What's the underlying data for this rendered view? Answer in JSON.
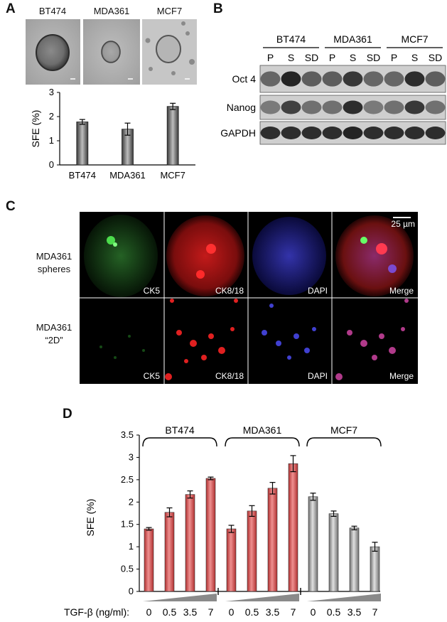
{
  "panel_a": {
    "label": "A",
    "images": [
      {
        "name": "BT474"
      },
      {
        "name": "MDA361"
      },
      {
        "name": "MCF7"
      }
    ],
    "chart_data": {
      "type": "bar",
      "categories": [
        "BT474",
        "MDA361",
        "MCF7"
      ],
      "values": [
        1.78,
        1.48,
        2.42
      ],
      "errors": [
        0.1,
        0.25,
        0.13
      ],
      "ylabel": "SFE (%)",
      "ylim": [
        0,
        3
      ],
      "yticks": [
        "0",
        "1",
        "2",
        "3"
      ]
    }
  },
  "panel_b": {
    "label": "B",
    "groups": [
      "BT474",
      "MDA361",
      "MCF7"
    ],
    "lanes": [
      "P",
      "S",
      "SD",
      "P",
      "S",
      "SD",
      "P",
      "S",
      "SD"
    ],
    "rows": [
      "Oct 4",
      "Nanog",
      "GAPDH"
    ]
  },
  "panel_c": {
    "label": "C",
    "scale_bar": "25 µm",
    "row_labels": [
      [
        "MDA361",
        "spheres"
      ],
      [
        "MDA361",
        "“2D”"
      ]
    ],
    "channels": [
      "CK5",
      "CK8/18",
      "DAPI",
      "Merge"
    ]
  },
  "panel_d": {
    "label": "D",
    "chart_data": {
      "type": "bar",
      "groups": [
        "BT474",
        "MDA361",
        "MCF7"
      ],
      "series": [
        {
          "group": "BT474",
          "color": "#e07070",
          "values": [
            1.4,
            1.77,
            2.17,
            2.53
          ],
          "errors": [
            0.03,
            0.1,
            0.08,
            0.03
          ]
        },
        {
          "group": "MDA361",
          "color": "#e07070",
          "values": [
            1.4,
            1.8,
            2.31,
            2.86
          ],
          "errors": [
            0.08,
            0.12,
            0.13,
            0.18
          ]
        },
        {
          "group": "MCF7",
          "color": "#bdbdbd",
          "values": [
            2.12,
            1.74,
            1.42,
            1.0
          ],
          "errors": [
            0.08,
            0.06,
            0.04,
            0.1
          ]
        }
      ],
      "ylabel": "SFE (%)",
      "ylim": [
        0,
        3.5
      ],
      "yticks": [
        "0",
        "0.5",
        "1",
        "1.5",
        "2",
        "2.5",
        "3",
        "3.5"
      ],
      "xlabel": "TGF-β (ng/ml):",
      "doses": [
        "0",
        "0.5",
        "3.5",
        "7"
      ]
    }
  }
}
